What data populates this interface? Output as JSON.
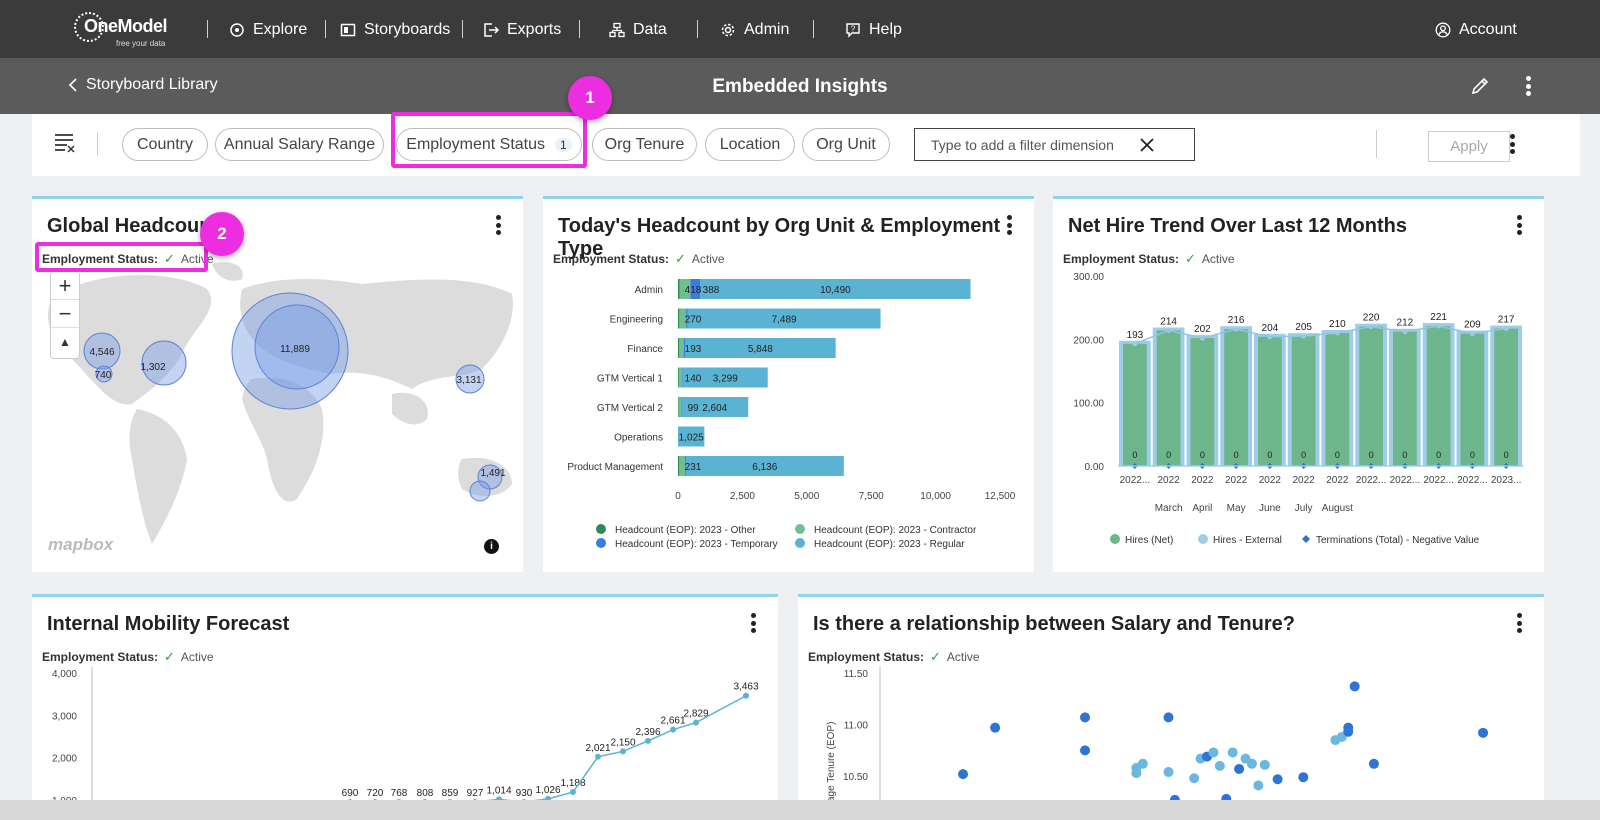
{
  "nav": {
    "logo_name": "OneModel",
    "logo_tag": "free your data",
    "items": [
      {
        "label": "Explore",
        "icon": "explore-icon"
      },
      {
        "label": "Storyboards",
        "icon": "storyboards-icon"
      },
      {
        "label": "Exports",
        "icon": "exports-icon"
      },
      {
        "label": "Data",
        "icon": "data-icon"
      },
      {
        "label": "Admin",
        "icon": "gear-icon"
      },
      {
        "label": "Help",
        "icon": "help-icon"
      }
    ],
    "account": "Account"
  },
  "subbar": {
    "back_label": "Storyboard Library",
    "title": "Embedded Insights"
  },
  "filters": {
    "chips": [
      {
        "label": "Country"
      },
      {
        "label": "Annual Salary Range"
      },
      {
        "label": "Employment Status",
        "count": "1"
      },
      {
        "label": "Org Tenure"
      },
      {
        "label": "Location"
      },
      {
        "label": "Org Unit"
      }
    ],
    "input_placeholder": "Type to add a filter dimension",
    "apply_label": "Apply"
  },
  "annotations": {
    "badge1": "1",
    "badge2": "2"
  },
  "colors": {
    "annotation": "#ec2ee0",
    "bar_regular": "#5bb3d3",
    "bar_other": "#2e8b57",
    "bar_contractor": "#6fbf8f",
    "bar_temporary": "#3b7ddd",
    "hires_net": "#6db58a",
    "hires_external": "#9fcde8",
    "terminations": "#2f6fd0"
  },
  "filter_tag": {
    "label": "Employment Status:",
    "value": "Active"
  },
  "cards": {
    "global_headcount": {
      "title": "Global Headcount",
      "attribution": "mapbox",
      "bubbles": [
        "11,889",
        "4,546",
        "740",
        "1,302",
        "3,131",
        "1,491"
      ]
    },
    "org_unit": {
      "title": "Today's Headcount by Org Unit & Employment Type"
    },
    "net_hire": {
      "title": "Net Hire Trend Over Last 12 Months"
    },
    "mobility": {
      "title": "Internal Mobility Forecast"
    },
    "salary": {
      "title": "Is there a relationship between Salary and Tenure?",
      "ylabel": "age Tenure (EOP)"
    }
  },
  "chart_data": [
    {
      "type": "bar",
      "title": "Today's Headcount by Org Unit & Employment Type",
      "orientation": "horizontal",
      "stacked": true,
      "categories": [
        "Admin",
        "Engineering",
        "Finance",
        "GTM Vertical 1",
        "GTM Vertical 2",
        "Operations",
        "Product Management"
      ],
      "series": [
        {
          "name": "Headcount (EOP): 2023 - Other",
          "values": [
            60,
            45,
            40,
            25,
            15,
            0,
            40
          ]
        },
        {
          "name": "Headcount (EOP): 2023 - Contractor",
          "values": [
            418,
            270,
            193,
            140,
            99,
            0,
            231
          ]
        },
        {
          "name": "Headcount (EOP): 2023 - Temporary",
          "values": [
            388,
            60,
            40,
            20,
            10,
            0,
            30
          ]
        },
        {
          "name": "Headcount (EOP): 2023 - Regular",
          "values": [
            10490,
            7489,
            5848,
            3299,
            2604,
            1025,
            6136
          ]
        }
      ],
      "data_labels": [
        [
          "418",
          "388",
          "10,490"
        ],
        [
          "270",
          "7,489"
        ],
        [
          "193",
          "5,848"
        ],
        [
          "140",
          "3,299"
        ],
        [
          "99",
          "2,604"
        ],
        [
          "1,025"
        ],
        [
          "231",
          "6,136"
        ]
      ],
      "xticks": [
        "0",
        "2,500",
        "5,000",
        "7,500",
        "10,000",
        "12,500"
      ],
      "xlim": [
        0,
        12500
      ]
    },
    {
      "type": "bar",
      "title": "Net Hire Trend Over Last 12 Months",
      "categories": [
        "2022...",
        "2022",
        "2022",
        "2022",
        "2022",
        "2022",
        "2022",
        "2022...",
        "2022...",
        "2022...",
        "2022...",
        "2023..."
      ],
      "month_labels": [
        "",
        "March",
        "April",
        "May",
        "June",
        "July",
        "August",
        "",
        "",
        "",
        "",
        ""
      ],
      "series": [
        {
          "name": "Hires (Net)",
          "values": [
            193,
            214,
            202,
            216,
            204,
            205,
            210,
            220,
            212,
            221,
            209,
            217
          ]
        },
        {
          "name": "Hires - External",
          "values": [
            193,
            214,
            202,
            216,
            204,
            205,
            210,
            220,
            212,
            221,
            209,
            217
          ]
        },
        {
          "name": "Terminations (Total) - Negative Value",
          "values": [
            0,
            0,
            0,
            0,
            0,
            0,
            0,
            0,
            0,
            0,
            0,
            0
          ]
        }
      ],
      "yticks": [
        "0.00",
        "100.00",
        "200.00",
        "300.00"
      ],
      "ylim": [
        0,
        300
      ]
    },
    {
      "type": "line",
      "title": "Internal Mobility Forecast",
      "values": [
        690,
        720,
        768,
        808,
        859,
        927,
        1014,
        930,
        1026,
        1188,
        2021,
        2150,
        2396,
        2661,
        2829,
        3463
      ],
      "labels": [
        "690",
        "720",
        "768",
        "808",
        "859",
        "927",
        "1,014",
        "930",
        "1,026",
        "1,188",
        "2,021",
        "2,150",
        "2,396",
        "2,661",
        "2,829",
        "3,463"
      ],
      "yticks": [
        "1,000",
        "2,000",
        "3,000",
        "4,000"
      ],
      "ylim": [
        1000,
        4000
      ]
    },
    {
      "type": "scatter",
      "title": "Is there a relationship between Salary and Tenure?",
      "ylabel": "age Tenure (EOP)",
      "yticks": [
        "10.50",
        "11.00",
        "11.50"
      ],
      "ylim": [
        10.3,
        11.5
      ],
      "points": [
        {
          "x": 0.12,
          "y": 10.52,
          "s": "dark"
        },
        {
          "x": 0.17,
          "y": 10.97,
          "s": "dark"
        },
        {
          "x": 0.31,
          "y": 11.07,
          "s": "dark"
        },
        {
          "x": 0.31,
          "y": 10.75,
          "s": "dark"
        },
        {
          "x": 0.39,
          "y": 10.53,
          "s": "light"
        },
        {
          "x": 0.39,
          "y": 10.58,
          "s": "light"
        },
        {
          "x": 0.4,
          "y": 10.62,
          "s": "light"
        },
        {
          "x": 0.44,
          "y": 10.54,
          "s": "light"
        },
        {
          "x": 0.44,
          "y": 11.07,
          "s": "dark"
        },
        {
          "x": 0.45,
          "y": 10.27,
          "s": "dark"
        },
        {
          "x": 0.48,
          "y": 10.48,
          "s": "light"
        },
        {
          "x": 0.49,
          "y": 10.67,
          "s": "light"
        },
        {
          "x": 0.5,
          "y": 10.69,
          "s": "dark"
        },
        {
          "x": 0.51,
          "y": 10.73,
          "s": "light"
        },
        {
          "x": 0.52,
          "y": 10.6,
          "s": "light"
        },
        {
          "x": 0.53,
          "y": 10.28,
          "s": "dark"
        },
        {
          "x": 0.54,
          "y": 10.73,
          "s": "light"
        },
        {
          "x": 0.55,
          "y": 10.57,
          "s": "dark"
        },
        {
          "x": 0.56,
          "y": 10.67,
          "s": "light"
        },
        {
          "x": 0.57,
          "y": 10.62,
          "s": "light"
        },
        {
          "x": 0.58,
          "y": 10.41,
          "s": "light"
        },
        {
          "x": 0.59,
          "y": 10.61,
          "s": "light"
        },
        {
          "x": 0.61,
          "y": 10.47,
          "s": "dark"
        },
        {
          "x": 0.65,
          "y": 10.49,
          "s": "dark"
        },
        {
          "x": 0.7,
          "y": 10.85,
          "s": "light"
        },
        {
          "x": 0.71,
          "y": 10.88,
          "s": "light"
        },
        {
          "x": 0.72,
          "y": 10.93,
          "s": "dark"
        },
        {
          "x": 0.72,
          "y": 10.97,
          "s": "dark"
        },
        {
          "x": 0.73,
          "y": 11.37,
          "s": "dark"
        },
        {
          "x": 0.76,
          "y": 10.62,
          "s": "dark"
        },
        {
          "x": 0.93,
          "y": 10.92,
          "s": "dark"
        }
      ]
    }
  ]
}
